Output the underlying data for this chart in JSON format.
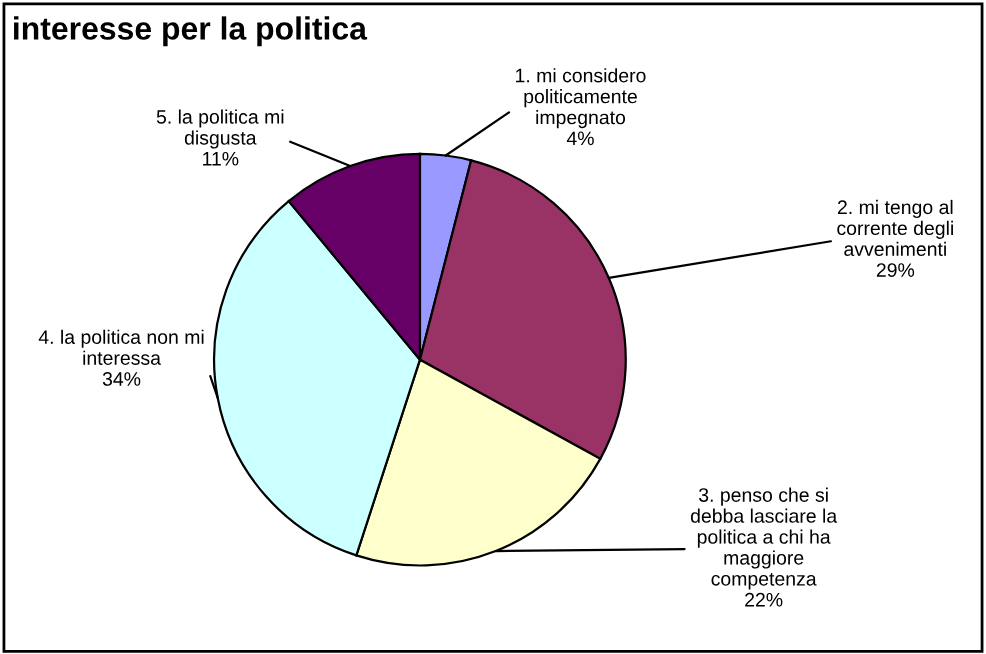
{
  "chart_data": {
    "type": "pie",
    "title": "interesse per la politica",
    "categories": [
      "1. mi considero\npoliticamente\nimpegnato",
      "2. mi tengo al\ncorrente degli\navvenimenti",
      "3. penso che si\ndebba lasciare la\npolitica a chi ha\nmaggiore\ncompetenza",
      "4. la politica non mi\ninteressa",
      "5. la politica mi\ndisgusta"
    ],
    "values": [
      4,
      29,
      22,
      34,
      11
    ],
    "value_labels": [
      "4%",
      "29%",
      "22%",
      "34%",
      "11%"
    ],
    "colors": [
      "#9999ff",
      "#993366",
      "#ffffcc",
      "#ccffff",
      "#660066"
    ],
    "legend": false
  }
}
